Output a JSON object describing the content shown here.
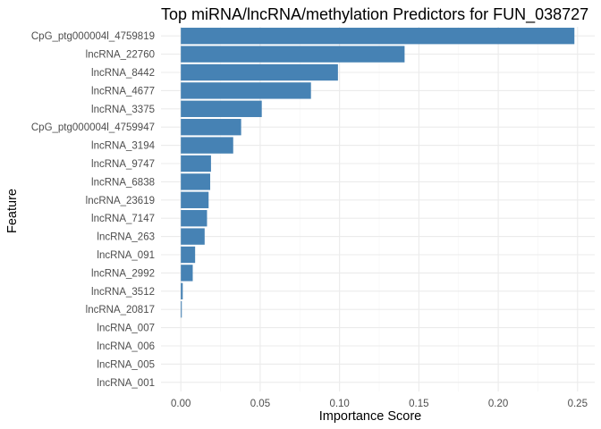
{
  "chart_data": {
    "type": "bar",
    "orientation": "horizontal",
    "title": "Top miRNA/lncRNA/methylation Predictors for FUN_038727",
    "xlabel": "Importance Score",
    "ylabel": "Feature",
    "xlim": [
      0,
      0.25
    ],
    "x_ticks": [
      0.0,
      0.05,
      0.1,
      0.15,
      0.2,
      0.25
    ],
    "x_tick_labels": [
      "0.00",
      "0.05",
      "0.10",
      "0.15",
      "0.20",
      "0.25"
    ],
    "grid": true,
    "legend": "none",
    "bar_color": "#4682b4",
    "categories": [
      "CpG_ptg000004l_4759819",
      "lncRNA_22760",
      "lncRNA_8442",
      "lncRNA_4677",
      "lncRNA_3375",
      "CpG_ptg000004l_4759947",
      "lncRNA_3194",
      "lncRNA_9747",
      "lncRNA_6838",
      "lncRNA_23619",
      "lncRNA_7147",
      "lncRNA_263",
      "lncRNA_091",
      "lncRNA_2992",
      "lncRNA_3512",
      "lncRNA_20817",
      "lncRNA_007",
      "lncRNA_006",
      "lncRNA_005",
      "lncRNA_001"
    ],
    "values": [
      0.248,
      0.141,
      0.099,
      0.082,
      0.051,
      0.038,
      0.033,
      0.019,
      0.0185,
      0.0175,
      0.0165,
      0.015,
      0.009,
      0.0075,
      0.0012,
      0.0006,
      0,
      0,
      0,
      0
    ]
  }
}
